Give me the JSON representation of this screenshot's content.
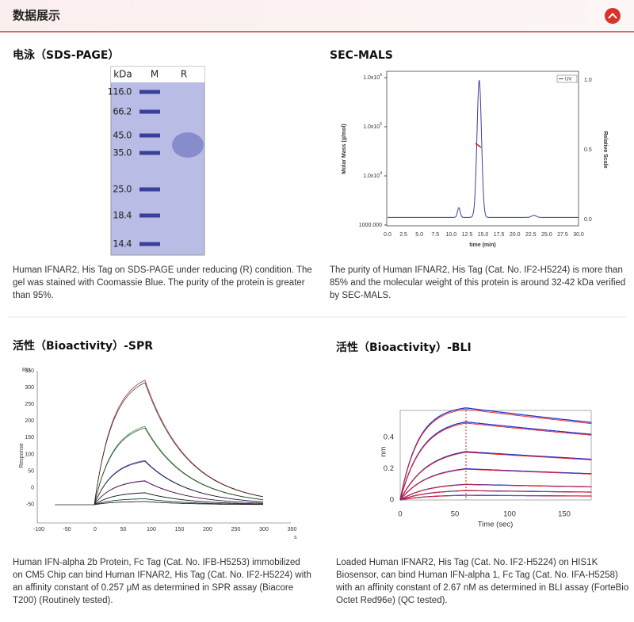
{
  "header": {
    "title": "数据展示"
  },
  "sds_page": {
    "heading": "电泳（SDS-PAGE）",
    "lane_labels": [
      "kDa",
      "M",
      "R"
    ],
    "markers": [
      "116.0",
      "66.2",
      "45.0",
      "35.0",
      "25.0",
      "18.4",
      "14.4"
    ],
    "caption": [
      "Human IFNAR2, His Tag on SDS-PAGE under reducing (R) condition. The",
      "gel was stained with Coomassie Blue. The purity of the protein is greater",
      "than 95%."
    ]
  },
  "sec_mals": {
    "heading": "SEC-MALS",
    "y_ticks": [
      {
        "base": "1.0x10",
        "exp": "6"
      },
      {
        "base": "1.0x10",
        "exp": "5"
      },
      {
        "base": "1.0x10",
        "exp": "4"
      },
      {
        "base": "1000.000",
        "exp": ""
      }
    ],
    "y2_ticks": [
      "1.0",
      "0.5",
      "0.0"
    ],
    "x_ticks": [
      "0.0",
      "2.5",
      "5.0",
      "7.5",
      "10.0",
      "12.5",
      "15.0",
      "17.5",
      "20.0",
      "22.5",
      "25.0",
      "27.5",
      "30.0"
    ],
    "y_label": "Molar Mass (g/mol)",
    "y2_label": "Relative Scale",
    "x_label": "time (min)",
    "legend": "UV",
    "caption": [
      "The purity of Human IFNAR2, His Tag (Cat. No. IF2-H5224) is more than",
      "85% and the molecular weight of this protein is around 32-42 kDa verified",
      "by SEC-MALS."
    ]
  },
  "spr": {
    "heading": "活性（Bioactivity）-SPR",
    "unit": "RU",
    "y_label": "Response",
    "x_unit": "s",
    "y_ticks": [
      "350",
      "300",
      "250",
      "200",
      "150",
      "100",
      "50",
      "0",
      "-50"
    ],
    "x_ticks": [
      "-100",
      "-50",
      "0",
      "50",
      "100",
      "150",
      "200",
      "250",
      "300",
      "350"
    ],
    "caption": [
      "Human IFN-alpha 2b Protein, Fc Tag (Cat. No. IFB-H5253) immobilized",
      "on CM5 Chip can bind Human IFNAR2, His Tag (Cat. No. IF2-H5224) with",
      "an affinity constant of 0.257 μM as determined in SPR assay (Biacore",
      "T200) (Routinely tested)."
    ]
  },
  "bli": {
    "heading": "活性（Bioactivity）-BLI",
    "y_label": "nm",
    "x_label": "Time (sec)",
    "y_ticks": [
      "0.4",
      "0.2",
      "0"
    ],
    "x_ticks": [
      "0",
      "50",
      "100",
      "150"
    ],
    "caption": [
      "Loaded Human IFNAR2, His Tag (Cat. No. IF2-H5224) on HIS1K",
      "Biosensor, can bind Human IFN-alpha 1, Fc Tag (Cat. No. IFA-H5258)",
      "with an affinity constant of 2.67 nM as determined in BLI assay (ForteBio",
      "Octet Red96e) (QC tested)."
    ]
  }
}
